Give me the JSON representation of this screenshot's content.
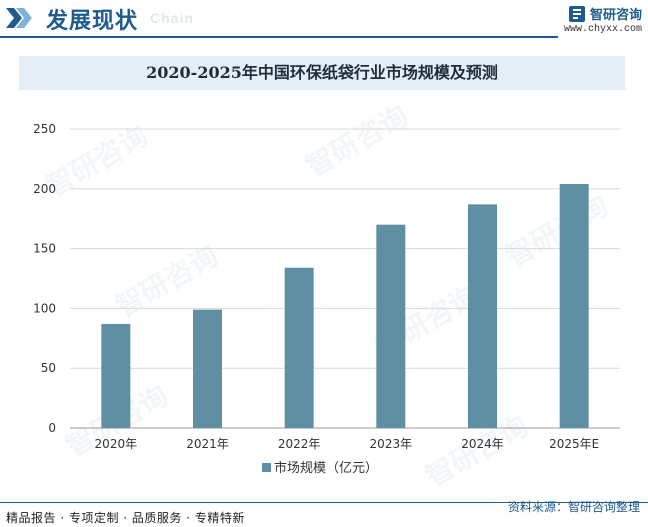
{
  "header": {
    "title": "发展现状",
    "subtitle": "Chain",
    "brand_name": "智研咨询",
    "brand_url": "www.chyxx.com"
  },
  "watermark_text": "智研咨询",
  "chart_data": {
    "type": "bar",
    "title": "2020-2025年中国环保纸袋行业市场规模及预测",
    "categories": [
      "2020年",
      "2021年",
      "2022年",
      "2023年",
      "2024年",
      "2025年E"
    ],
    "series": [
      {
        "name": "市场规模（亿元）",
        "values": [
          87,
          99,
          134,
          170,
          187,
          204
        ],
        "color": "#5f8fa3"
      }
    ],
    "ylim": [
      0,
      250
    ],
    "yticks": [
      0,
      50,
      100,
      150,
      200,
      250
    ],
    "xlabel": "",
    "ylabel": "",
    "grid": true,
    "legend_position": "bottom"
  },
  "footer": {
    "left": "精品报告 · 专项定制 · 品质服务 · 专精特新",
    "right": "资料来源：智研咨询整理"
  },
  "colors": {
    "brand": "#1e5b8e",
    "bar": "#5f8fa3",
    "grid": "#d9d9d9",
    "title_bg": "#e3eef7"
  }
}
